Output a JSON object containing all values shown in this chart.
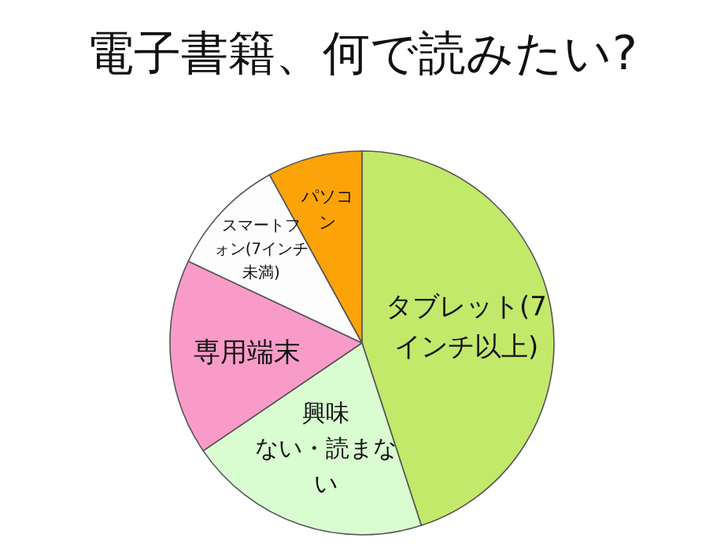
{
  "chart_data": {
    "type": "pie",
    "title": "電子書籍、何で読みたい?",
    "categories": [
      "タブレット(7インチ以上)",
      "興味ない・読まない",
      "専用端末",
      "スマートフォン(7インチ未満)",
      "パソコン"
    ],
    "values": [
      45,
      20.5,
      16.5,
      10,
      8
    ],
    "colors": [
      "#c2e96a",
      "#d9fcd0",
      "#f99bc9",
      "#fdfdfd",
      "#fca30a"
    ]
  }
}
